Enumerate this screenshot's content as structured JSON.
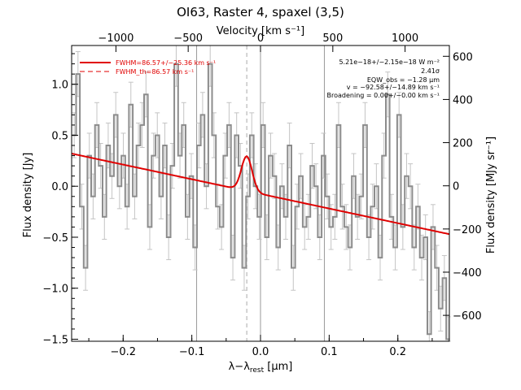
{
  "chart_data": {
    "type": "line",
    "title": "OI63, Raster 4, spaxel (3,5)",
    "xlabel": "λ−λ",
    "xlabel_sub": "rest",
    "xlabel_unit": " [μm]",
    "ylabel": "Flux density [Jy]",
    "ylabel_right": "Flux density [MJy sr⁻¹]",
    "top_axis_label": "Velocity [km s⁻¹]",
    "xlim": [
      -0.275,
      0.275
    ],
    "ylim": [
      -1.52,
      1.38
    ],
    "ylim_right": [
      -720,
      650
    ],
    "xticks": [
      -0.2,
      -0.1,
      0.0,
      0.1,
      0.2
    ],
    "xtick_labels": [
      "−0.2",
      "−0.1",
      "0.0",
      "0.1",
      "0.2"
    ],
    "yticks": [
      -1.5,
      -1.0,
      -0.5,
      0.0,
      0.5,
      1.0
    ],
    "ytick_labels": [
      "−1.5",
      "−1.0",
      "−0.5",
      "0.0",
      "0.5",
      "1.0"
    ],
    "yticks_right": [
      -600,
      -400,
      -200,
      0,
      200,
      400,
      600
    ],
    "ytick_labels_right": [
      "−600",
      "−400",
      "−200",
      "0",
      "200",
      "400",
      "600"
    ],
    "top_ticks_x": [
      -0.2105,
      -0.1053,
      0.0,
      0.1053,
      0.2105
    ],
    "top_tick_labels": [
      "−1000",
      "−500",
      "0",
      "500",
      "1000"
    ],
    "vertical_lines_x": [
      -0.093,
      0.0,
      0.093
    ],
    "dashed_line_x": -0.02,
    "legend": {
      "entries": [
        {
          "label": "FWHM=86.57+/−25.36 km s⁻¹",
          "style": "solid"
        },
        {
          "label": "FWHM_th=86.57 km s⁻¹",
          "style": "dashed"
        }
      ],
      "position": "top-left"
    },
    "annotations": [
      "5.21e−18+/−2.15e−18 W m⁻²",
      "2.41σ",
      "EQW_obs = −1.28 μm",
      "v = −92.58+/−14.89 km s⁻¹",
      "Broadening = 0.00+/−0.00 km s⁻¹"
    ],
    "series": [
      {
        "name": "",
        "kind": "step",
        "color": "#8c8c8c",
        "x": [
          -0.274,
          -0.2685,
          -0.263,
          -0.2575,
          -0.252,
          -0.2465,
          -0.241,
          -0.2355,
          -0.23,
          -0.2245,
          -0.219,
          -0.2135,
          -0.208,
          -0.2025,
          -0.197,
          -0.1915,
          -0.186,
          -0.1805,
          -0.175,
          -0.1695,
          -0.164,
          -0.1585,
          -0.153,
          -0.1475,
          -0.142,
          -0.1365,
          -0.131,
          -0.1255,
          -0.12,
          -0.1145,
          -0.109,
          -0.1035,
          -0.098,
          -0.0925,
          -0.087,
          -0.0815,
          -0.076,
          -0.0705,
          -0.065,
          -0.0595,
          -0.054,
          -0.0485,
          -0.043,
          -0.0375,
          -0.032,
          -0.0265,
          -0.021,
          -0.0155,
          -0.01,
          -0.0045,
          0.001,
          0.0065,
          0.012,
          0.0175,
          0.023,
          0.0285,
          0.034,
          0.0395,
          0.045,
          0.0505,
          0.056,
          0.0615,
          0.067,
          0.0725,
          0.078,
          0.0835,
          0.089,
          0.0945,
          0.1,
          0.1055,
          0.111,
          0.1165,
          0.122,
          0.1275,
          0.133,
          0.1385,
          0.144,
          0.1495,
          0.155,
          0.1605,
          0.166,
          0.1715,
          0.177,
          0.1825,
          0.188,
          0.1935,
          0.199,
          0.2045,
          0.21,
          0.2155,
          0.221,
          0.2265,
          0.232,
          0.2375,
          0.243,
          0.2485,
          0.254,
          0.2595,
          0.265,
          0.2705
        ],
        "y": [
          0.5,
          1.1,
          -0.2,
          -0.8,
          0.3,
          -0.1,
          0.6,
          0.2,
          -0.3,
          0.4,
          0.1,
          0.7,
          0.0,
          0.3,
          -0.2,
          0.8,
          -0.1,
          0.4,
          0.6,
          0.9,
          -0.4,
          0.3,
          0.5,
          -0.1,
          0.4,
          -0.5,
          0.2,
          1.2,
          0.3,
          0.6,
          -0.3,
          0.1,
          -0.6,
          0.4,
          0.7,
          0.0,
          1.2,
          0.5,
          -0.2,
          -0.4,
          0.3,
          0.6,
          -0.7,
          0.5,
          0.2,
          -0.8,
          -0.1,
          0.5,
          0.0,
          -0.3,
          0.6,
          -0.5,
          0.3,
          0.1,
          -0.6,
          0.0,
          -0.3,
          0.4,
          -0.8,
          -0.2,
          0.1,
          -0.4,
          -0.3,
          0.2,
          0.0,
          -0.5,
          0.3,
          -0.1,
          -0.4,
          -0.3,
          0.6,
          -0.2,
          -0.4,
          -0.6,
          0.1,
          -0.3,
          -0.1,
          0.6,
          -0.5,
          -0.2,
          0.0,
          -0.7,
          0.3,
          0.9,
          -0.3,
          -0.6,
          0.7,
          -0.4,
          0.1,
          0.0,
          -0.6,
          -0.2,
          -0.7,
          -0.5,
          -1.45,
          -0.4,
          -0.8,
          -1.2,
          -0.9,
          -1.5
        ],
        "err": 0.22
      },
      {
        "name": "FWHM=86.57+/−25.36 km s⁻¹",
        "kind": "fit",
        "color": "#e00000",
        "baseline_x": [
          -0.275,
          0.275
        ],
        "baseline_y": [
          0.32,
          -0.47
        ],
        "gaussian_center": -0.02,
        "gaussian_amplitude": 0.34,
        "gaussian_sigma": 0.0078
      }
    ]
  }
}
